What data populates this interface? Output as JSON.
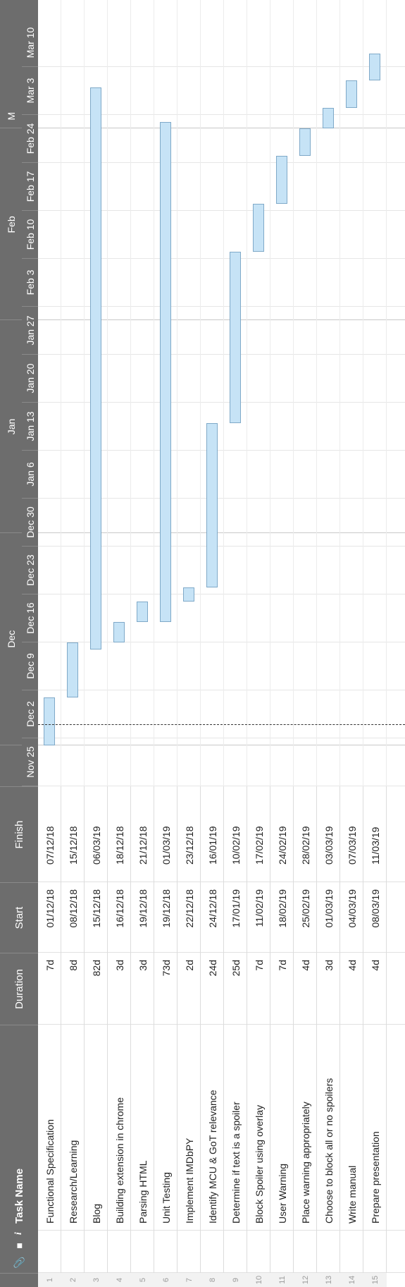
{
  "columns": {
    "attachment_icon": "paperclip-icon",
    "comment_icon": "comment-icon",
    "info_icon": "info-icon",
    "task_name": "Task Name",
    "duration": "Duration",
    "start": "Start",
    "finish": "Finish"
  },
  "timeline": {
    "months": [
      "Dec",
      "Jan",
      "Feb",
      "M"
    ],
    "weeks": [
      "Nov 25",
      "Dec 2",
      "Dec 9",
      "Dec 16",
      "Dec 23",
      "Dec 30",
      "Jan 6",
      "Jan 13",
      "Jan 20",
      "Jan 27",
      "Feb 3",
      "Feb 10",
      "Feb 17",
      "Feb 24",
      "Mar 3",
      "Mar 10"
    ],
    "today": "2018-12-04"
  },
  "colors": {
    "bar_fill": "#c6e3f6",
    "bar_border": "#7fa9c8",
    "header": "#6d6d6d"
  },
  "tasks": [
    {
      "num": "1",
      "name": "Functional Specification",
      "duration": "7d",
      "start": "01/12/18",
      "finish": "07/12/18"
    },
    {
      "num": "2",
      "name": "Research/Learning",
      "duration": "8d",
      "start": "08/12/18",
      "finish": "15/12/18"
    },
    {
      "num": "3",
      "name": "Blog",
      "duration": "82d",
      "start": "15/12/18",
      "finish": "06/03/19"
    },
    {
      "num": "4",
      "name": "Building extension in chrome",
      "duration": "3d",
      "start": "16/12/18",
      "finish": "18/12/18"
    },
    {
      "num": "5",
      "name": "Parsing HTML",
      "duration": "3d",
      "start": "19/12/18",
      "finish": "21/12/18"
    },
    {
      "num": "6",
      "name": "Unit Testing",
      "duration": "73d",
      "start": "19/12/18",
      "finish": "01/03/19"
    },
    {
      "num": "7",
      "name": "Implement IMDbPY",
      "duration": "2d",
      "start": "22/12/18",
      "finish": "23/12/18"
    },
    {
      "num": "8",
      "name": "Identify MCU & GoT relevance",
      "duration": "24d",
      "start": "24/12/18",
      "finish": "16/01/19"
    },
    {
      "num": "9",
      "name": "Determine if text is a spoiler",
      "duration": "25d",
      "start": "17/01/19",
      "finish": "10/02/19"
    },
    {
      "num": "10",
      "name": "Block Spoiler using overlay",
      "duration": "7d",
      "start": "11/02/19",
      "finish": "17/02/19"
    },
    {
      "num": "11",
      "name": "User Warning",
      "duration": "7d",
      "start": "18/02/19",
      "finish": "24/02/19"
    },
    {
      "num": "12",
      "name": "Place warning appropriately",
      "duration": "4d",
      "start": "25/02/19",
      "finish": "28/02/19"
    },
    {
      "num": "13",
      "name": "Choose to block all or no spoilers",
      "duration": "3d",
      "start": "01/03/19",
      "finish": "03/03/19"
    },
    {
      "num": "14",
      "name": "Write manual",
      "duration": "4d",
      "start": "04/03/19",
      "finish": "07/03/19"
    },
    {
      "num": "15",
      "name": "Prepare presentation",
      "duration": "4d",
      "start": "08/03/19",
      "finish": "11/03/19"
    }
  ]
}
